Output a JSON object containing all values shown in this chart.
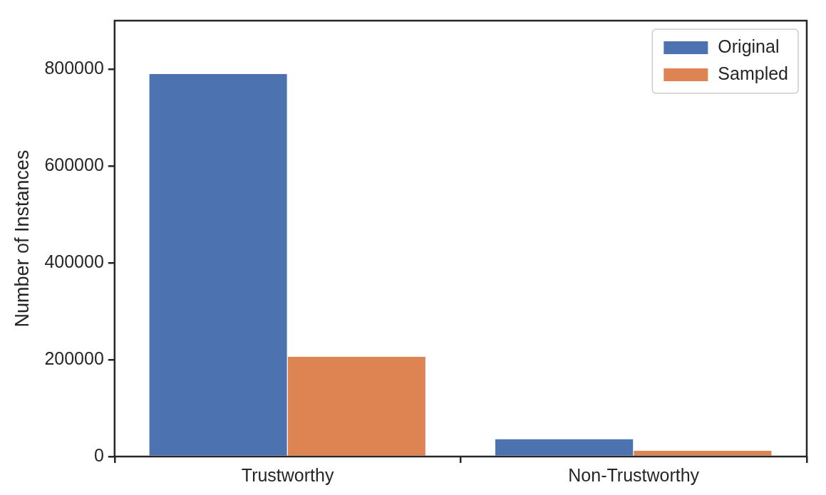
{
  "chart_data": {
    "type": "bar",
    "ylabel": "Number of Instances",
    "categories": [
      "Trustworthy",
      "Non-Trustworthy"
    ],
    "series": [
      {
        "name": "Original",
        "color": "#4c72b0",
        "values": [
          790000,
          36000
        ]
      },
      {
        "name": "Sampled",
        "color": "#dd8452",
        "values": [
          206000,
          12000
        ]
      }
    ],
    "ylim": [
      0,
      900000
    ],
    "yticks": [
      0,
      200000,
      400000,
      600000,
      800000
    ],
    "grid": false,
    "legend": "top right"
  }
}
